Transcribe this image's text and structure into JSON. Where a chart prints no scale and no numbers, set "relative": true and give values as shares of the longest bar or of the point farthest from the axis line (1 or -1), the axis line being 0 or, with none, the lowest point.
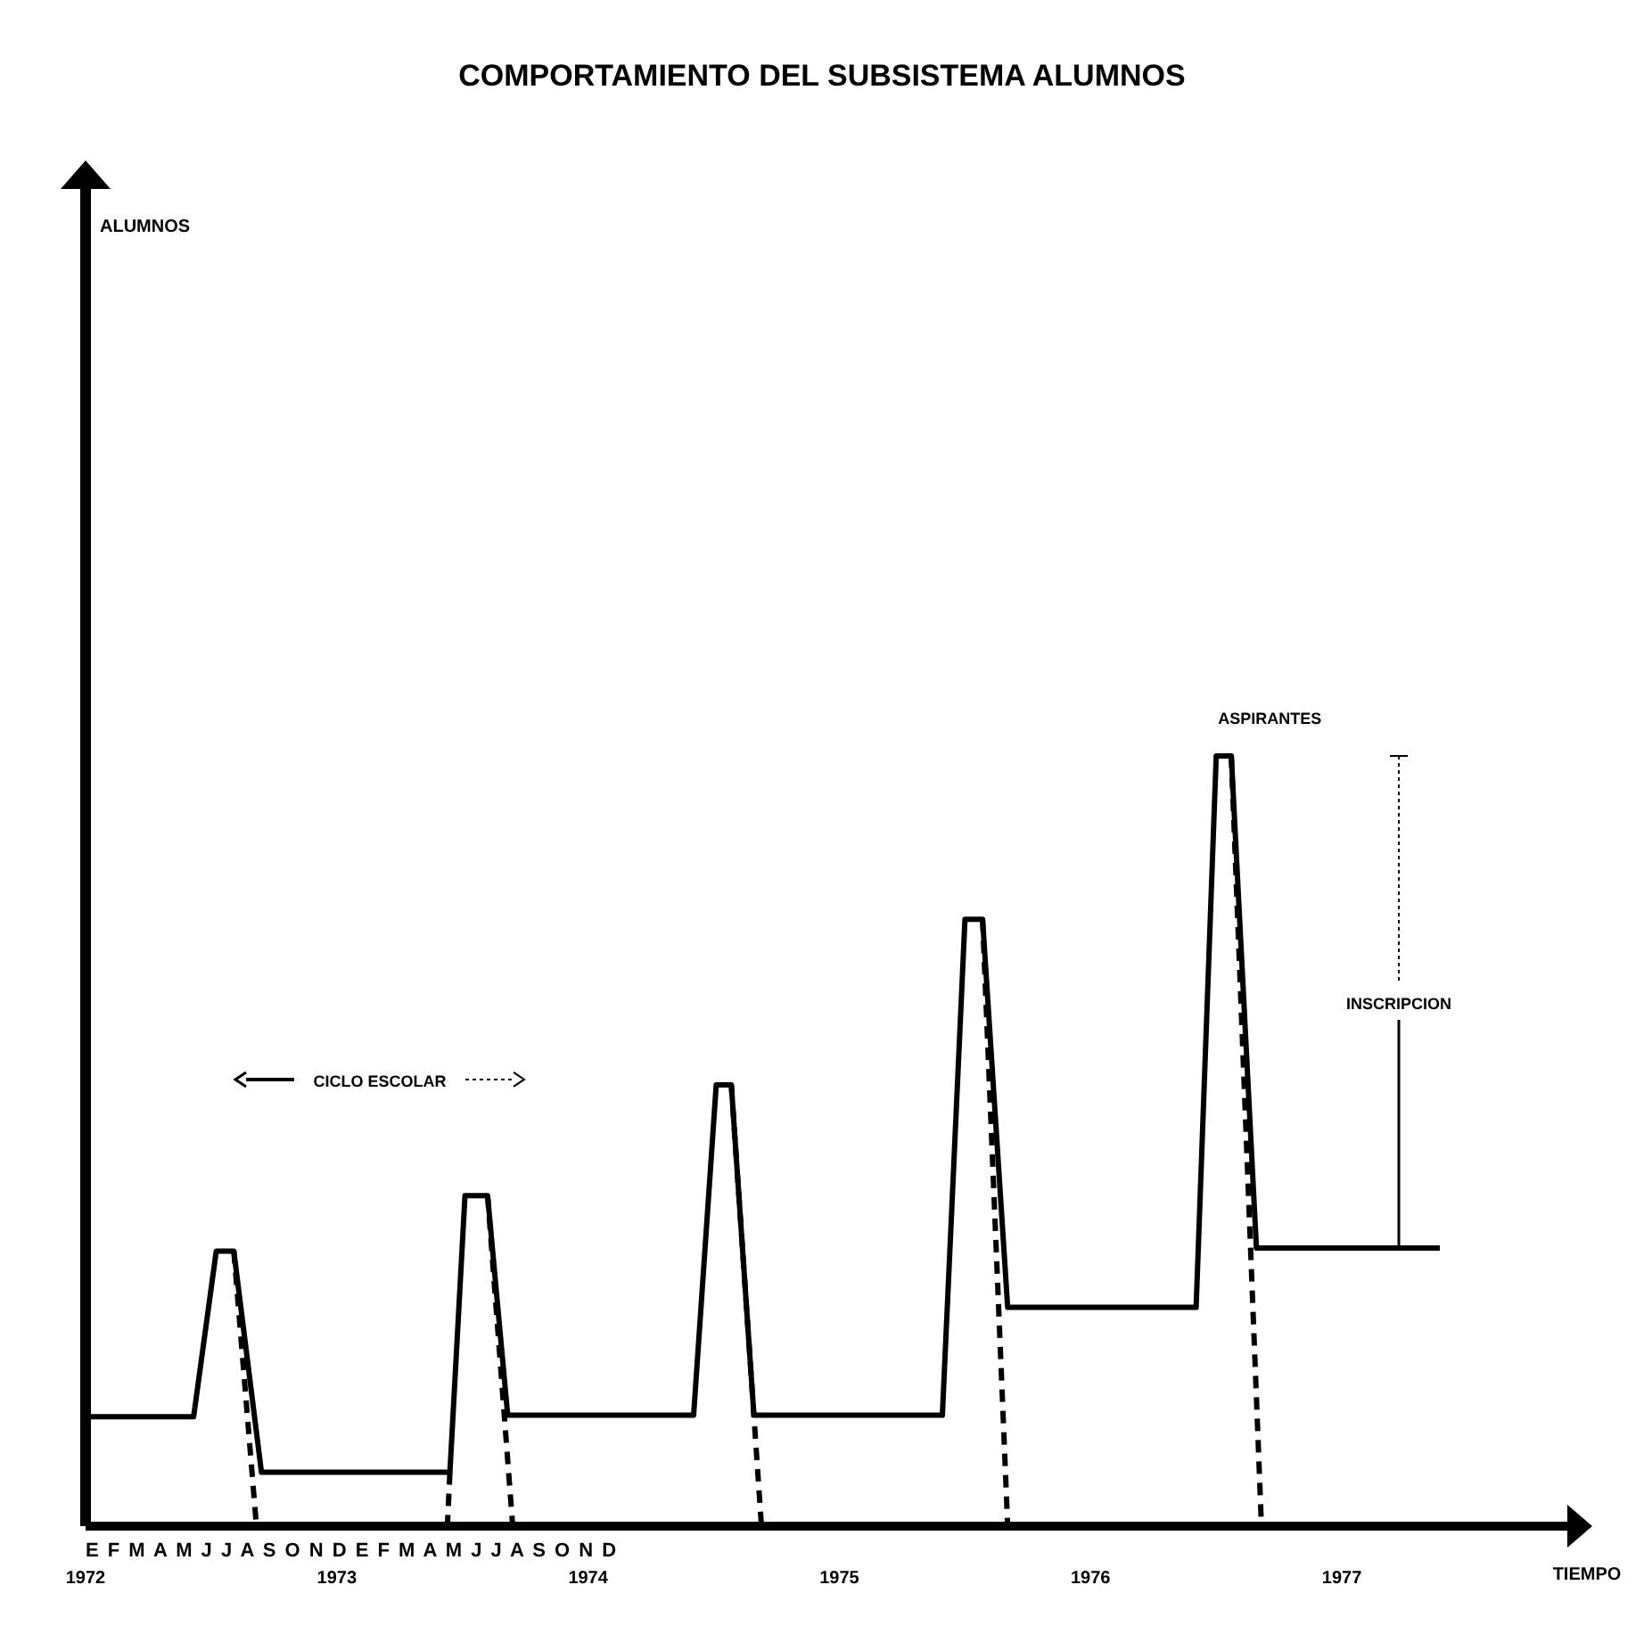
{
  "chart_data": {
    "type": "line",
    "title": "COMPORTAMIENTO DEL SUBSISTEMA ALUMNOS",
    "xlabel": "TIEMPO",
    "relative": true,
    "tick_labels": "x",
    "grid": false,
    "marker": "none",
    "xlim": [
      1972,
      1977.94
    ],
    "xticks": [
      1972,
      1973,
      1974,
      1975,
      1976,
      1977
    ],
    "series": [
      {
        "color": "#000000",
        "line_style": "solid",
        "x": [
          1972.0,
          1972.43,
          1972.52,
          1972.59,
          1972.7,
          1973.45,
          1973.51,
          1973.6,
          1973.68,
          1974.42,
          1974.51,
          1974.57,
          1974.66,
          1975.41,
          1975.5,
          1975.57,
          1975.67,
          1976.42,
          1976.5,
          1976.56,
          1976.66,
          1977.39
        ],
        "values": [
          0.142,
          0.142,
          0.357,
          0.357,
          0.07,
          0.07,
          0.429,
          0.429,
          0.144,
          0.144,
          0.573,
          0.573,
          0.144,
          0.144,
          0.788,
          0.788,
          0.284,
          0.284,
          1,
          1,
          0.361,
          0.361
        ]
      },
      {
        "color": "#000000",
        "line_style": "dashed",
        "x": [
          1972.59,
          1972.68
        ],
        "values": [
          0.357,
          0
        ]
      },
      {
        "color": "#000000",
        "line_style": "dashed",
        "x": [
          1973.45,
          1973.44
        ],
        "values": [
          0.07,
          0
        ]
      },
      {
        "color": "#000000",
        "line_style": "dashed",
        "x": [
          1973.6,
          1973.7
        ],
        "values": [
          0.429,
          0
        ]
      },
      {
        "color": "#000000",
        "line_style": "dashed",
        "x": [
          1974.57,
          1974.69
        ],
        "values": [
          0.573,
          0
        ]
      },
      {
        "color": "#000000",
        "line_style": "dashed",
        "x": [
          1975.57,
          1975.67
        ],
        "values": [
          0.788,
          0
        ]
      },
      {
        "color": "#000000",
        "line_style": "dashed",
        "x": [
          1976.56,
          1976.68
        ],
        "values": [
          1,
          0
        ]
      }
    ],
    "annotations": [
      "CICLO ESCOLAR",
      {
        "text": "ASPIRANTES",
        "x": 1976.5,
        "y": 1
      },
      "INSCRIPCION",
      "E F M A M J J A S O N D E F M A M J J A S O N D",
      "ALUMNOS"
    ]
  }
}
